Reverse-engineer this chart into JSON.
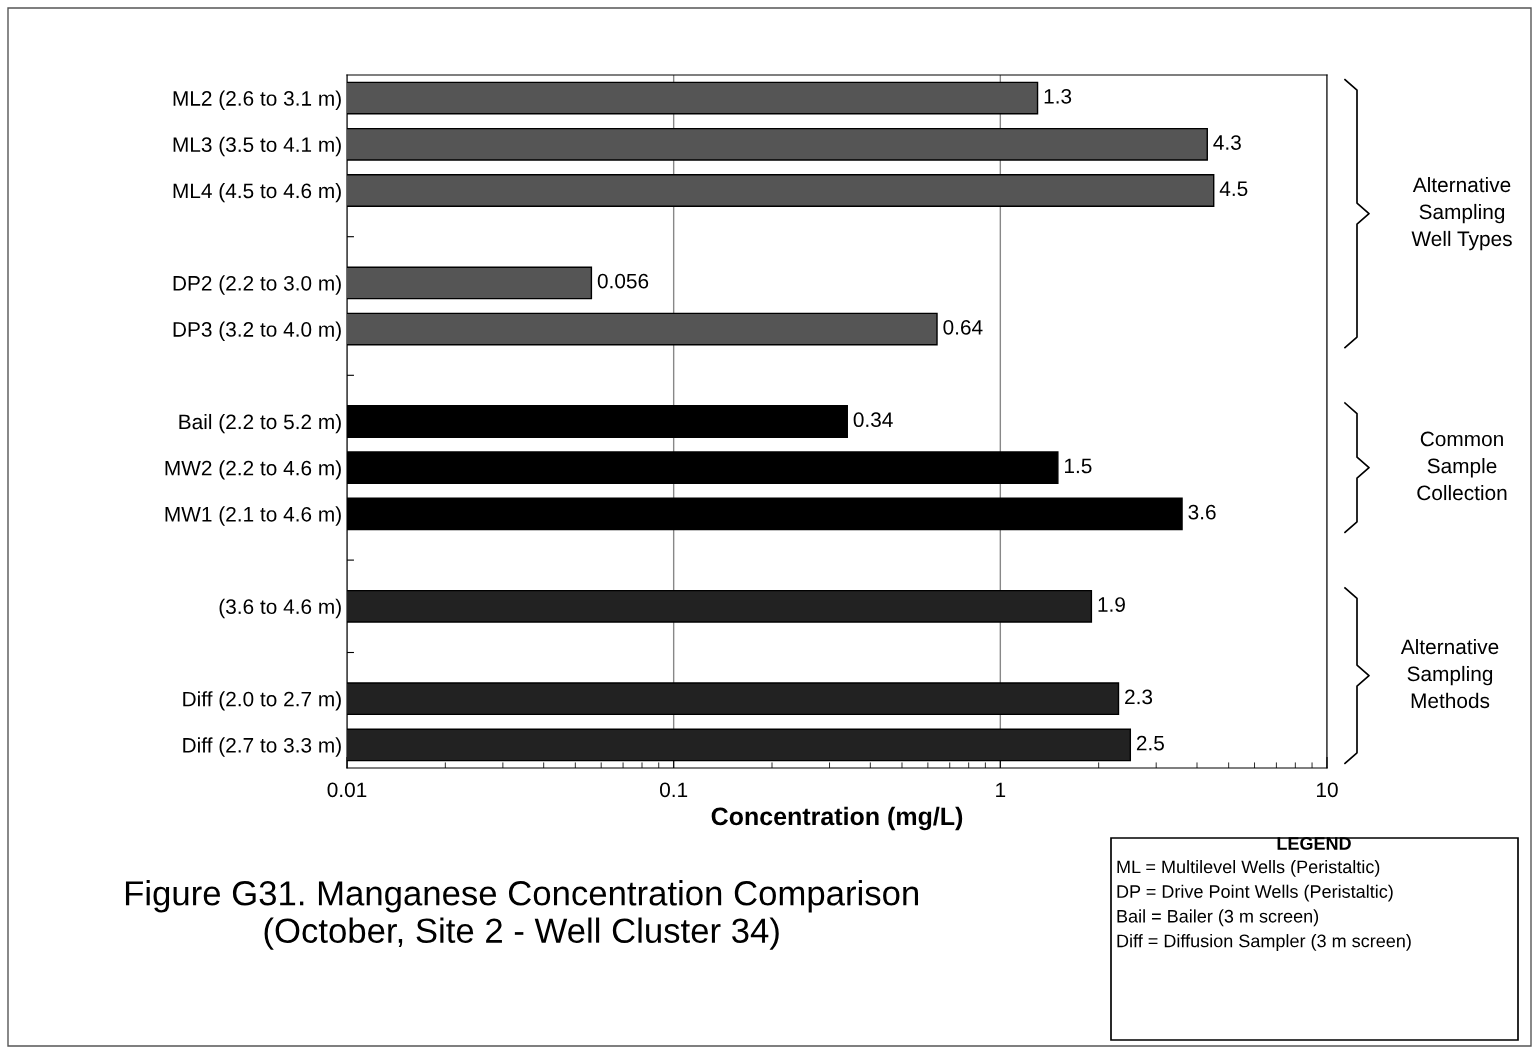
{
  "chart_data": {
    "type": "bar",
    "orientation": "horizontal",
    "title": "Figure G31. Manganese Concentration Comparison\n(October, Site 2 - Well Cluster 34)",
    "xlabel": "Concentration (mg/L)",
    "categories": [
      "ML2 (2.6 to 3.1 m)",
      "ML3 (3.5 to 4.1 m)",
      "ML4 (4.5 to 4.6 m)",
      null,
      "DP2 (2.2 to 3.0 m)",
      "DP3 (3.2 to 4.0 m)",
      null,
      "Bail (2.2 to 5.2 m)",
      "MW2 (2.2 to 4.6 m)",
      "MW1 (2.1 to 4.6 m)",
      null,
      "(3.6 to 4.6 m)",
      null,
      "Diff (2.0 to 2.7 m)",
      "Diff (2.7 to 3.3 m)"
    ],
    "values": [
      1.3,
      4.3,
      4.5,
      null,
      0.056,
      0.64,
      null,
      0.34,
      1.5,
      3.6,
      null,
      1.9,
      null,
      2.3,
      2.5
    ],
    "colors": [
      "#555555",
      "#555555",
      "#555555",
      null,
      "#555555",
      "#555555",
      null,
      "#000000",
      "#000000",
      "#000000",
      null,
      "#222222",
      null,
      "#222222",
      "#222222"
    ],
    "data_labels": true,
    "log": "x",
    "xlim": [
      0.01,
      10
    ],
    "xticks": [
      0.01,
      0.1,
      1,
      10
    ],
    "grid": "x",
    "annotations": [
      "Alternative\nSampling\nWell Types",
      "Common\nSample\nCollection",
      "Alternative\nSampling\nMethods",
      "LEGEND",
      "ML = Multilevel Wells (Peristaltic)\nDP = Drive Point Wells (Peristaltic)\nBail = Bailer (3 m screen)\nDiff = Diffusion Sampler (3 m screen)"
    ]
  }
}
